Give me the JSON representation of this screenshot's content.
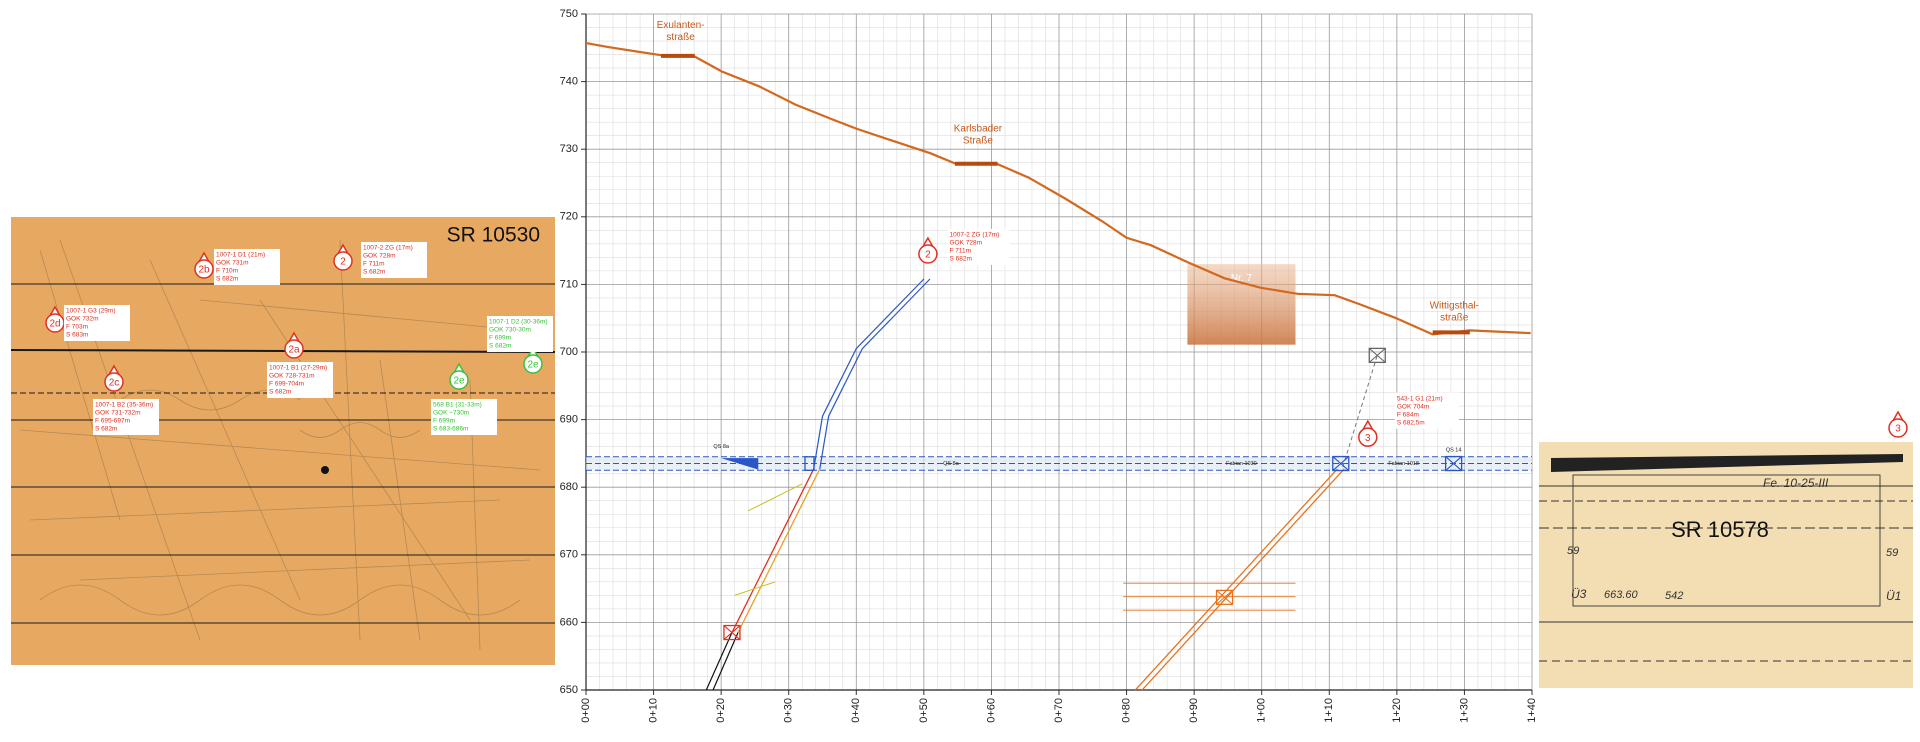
{
  "chart_data": {
    "type": "line",
    "x": [
      0,
      3.3,
      11.1,
      16.1,
      20.1,
      25.6,
      31,
      36.5,
      40.1,
      45.5,
      51,
      54.6,
      60.9,
      65.5,
      70.9,
      76.3,
      80,
      83.6,
      89,
      94.5,
      99.9,
      105.4,
      110.8,
      114.4,
      119.9,
      125.3,
      130.8,
      139.8
    ],
    "values": [
      745.7,
      745.1,
      743.9,
      743.7,
      741.5,
      739.3,
      736.6,
      734.4,
      733,
      731.2,
      729.4,
      727.9,
      727.8,
      725.8,
      722.7,
      719.4,
      716.9,
      715.8,
      713.3,
      710.9,
      709.5,
      708.6,
      708.4,
      707.1,
      705,
      702.6,
      703.2,
      702.8
    ],
    "color": "#d2691e",
    "xlim": [
      0,
      140
    ],
    "ylim": [
      650,
      750
    ],
    "xticks": [
      {
        "value": 0,
        "label": "0+00"
      },
      {
        "value": 10,
        "label": "0+10"
      },
      {
        "value": 20,
        "label": "0+20"
      },
      {
        "value": 30,
        "label": "0+30"
      },
      {
        "value": 40,
        "label": "0+40"
      },
      {
        "value": 50,
        "label": "0+50"
      },
      {
        "value": 60,
        "label": "0+60"
      },
      {
        "value": 70,
        "label": "0+70"
      },
      {
        "value": 80,
        "label": "0+80"
      },
      {
        "value": 90,
        "label": "0+90"
      },
      {
        "value": 100,
        "label": "1+00"
      },
      {
        "value": 110,
        "label": "1+10"
      },
      {
        "value": 120,
        "label": "1+20"
      },
      {
        "value": 130,
        "label": "1+30"
      },
      {
        "value": 140,
        "label": "1+40"
      }
    ],
    "yticks": [
      650,
      660,
      670,
      680,
      690,
      700,
      710,
      720,
      730,
      740,
      750
    ],
    "grid": true,
    "streets": [
      {
        "lines": [
          "Exulanten-",
          "straße"
        ]
      },
      {
        "lines": [
          "Karlsbader",
          "Straße"
        ]
      },
      {
        "lines": [
          "Wittigsthal-",
          "straße"
        ]
      }
    ],
    "highlight": "Nr. 7",
    "markers": [
      "2",
      "3"
    ],
    "boreholes": [
      {
        "lines": [
          "1007-2 ZG (17m)",
          "GOK 728m",
          "F 711m",
          "S 682m"
        ]
      },
      {
        "lines": [
          "543-1 G1 (21m)",
          "GOK 704m",
          "F 684m",
          "S 682,5m"
        ]
      }
    ],
    "section_labels": [
      "QS 8a",
      "QS 8a",
      "Fabian 1030",
      "Fabian 1018",
      "QS 14"
    ]
  },
  "left_panel": {
    "title": "SR 10530",
    "markers": [
      "2b",
      "2",
      "2d",
      "2a",
      "2c",
      "2e",
      "2e"
    ],
    "boreholes": [
      {
        "lines": [
          "1007-1 D1 (21m)",
          "GOK 731m",
          "F 710m",
          "S 682m"
        ]
      },
      {
        "lines": [
          "1007-2 ZG (17m)",
          "GOK 728m",
          "F 711m",
          "S 682m"
        ]
      },
      {
        "lines": [
          "1007-1 G3 (29m)",
          "GOK 732m",
          "F 703m",
          "S 683m"
        ]
      },
      {
        "lines": [
          "1007-1 B1 (27-29m)",
          "GOK 728-731m",
          "F 699-704m",
          "S 682m"
        ]
      },
      {
        "lines": [
          "1007-1 B2 (35-36m)",
          "GOK 731-732m",
          "F 695-697m",
          "S 682m"
        ]
      },
      {
        "lines": [
          "568 B1 (31-33m)",
          "GOK ~730m",
          "F 699m",
          "S 683-686m"
        ]
      },
      {
        "lines": [
          "1007-1 D2 (30-36m)",
          "GOK 730-30m",
          "F 699m",
          "S 682m"
        ]
      }
    ]
  },
  "right_panel": {
    "title": "SR 10578",
    "marker": "3",
    "notes": [
      "Fe. 10-25-III",
      "663.60",
      "542",
      "Ü3",
      "Ü1",
      "59",
      "59"
    ]
  }
}
